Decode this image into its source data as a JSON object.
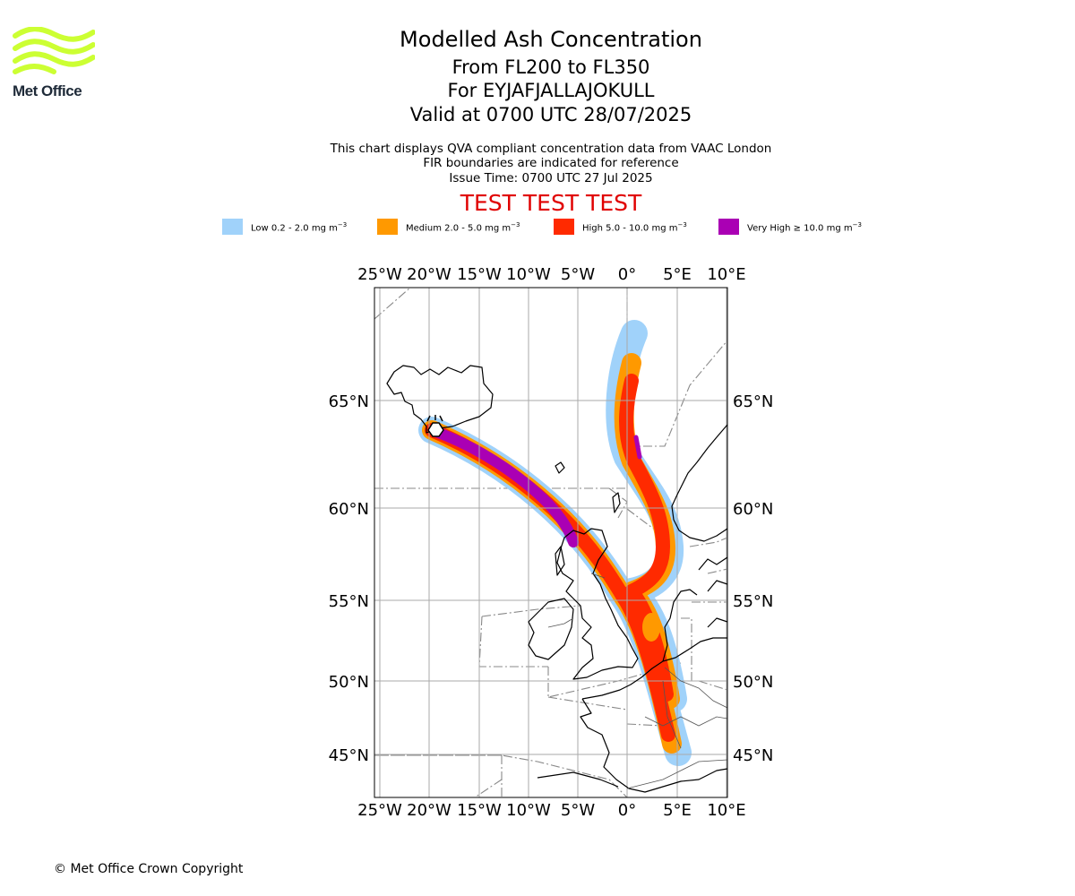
{
  "logo": {
    "name": "Met Office",
    "icon": "met-office-wave-logo",
    "color": "#ccff33"
  },
  "header": {
    "title": "Modelled Ash Concentration",
    "levels": "From FL200 to FL350",
    "volcano": "For EYJAFJALLAJOKULL",
    "valid": "Valid at 0700 UTC 28/07/2025"
  },
  "subtitle": {
    "line1": "This chart displays QVA compliant concentration data from VAAC London",
    "line2": "FIR boundaries are indicated for reference",
    "line3": "Issue Time: 0700 UTC 27 Jul 2025"
  },
  "watermark": "TEST TEST TEST",
  "legend": [
    {
      "label": "Low 0.2 - 2.0 mg m",
      "color": "#a0d2fa"
    },
    {
      "label": "Medium 2.0 - 5.0 mg m",
      "color": "#ff9900"
    },
    {
      "label": "High 5.0 - 10.0 mg m",
      "color": "#ff2a00"
    },
    {
      "label": "Very High ≥ 10.0 mg m",
      "color": "#aa00b4"
    }
  ],
  "legend_unit_exp": "−3",
  "axes": {
    "lon_labels": [
      "25°W",
      "20°W",
      "15°W",
      "10°W",
      "5°W",
      "0°",
      "5°E",
      "10°E"
    ],
    "lat_labels": [
      "65°N",
      "60°N",
      "55°N",
      "50°N",
      "45°N"
    ]
  },
  "volcano_marker": {
    "lon": -19.6,
    "lat": 63.6,
    "icon": "volcano-icon"
  },
  "copyright": "© Met Office Crown Copyright"
}
